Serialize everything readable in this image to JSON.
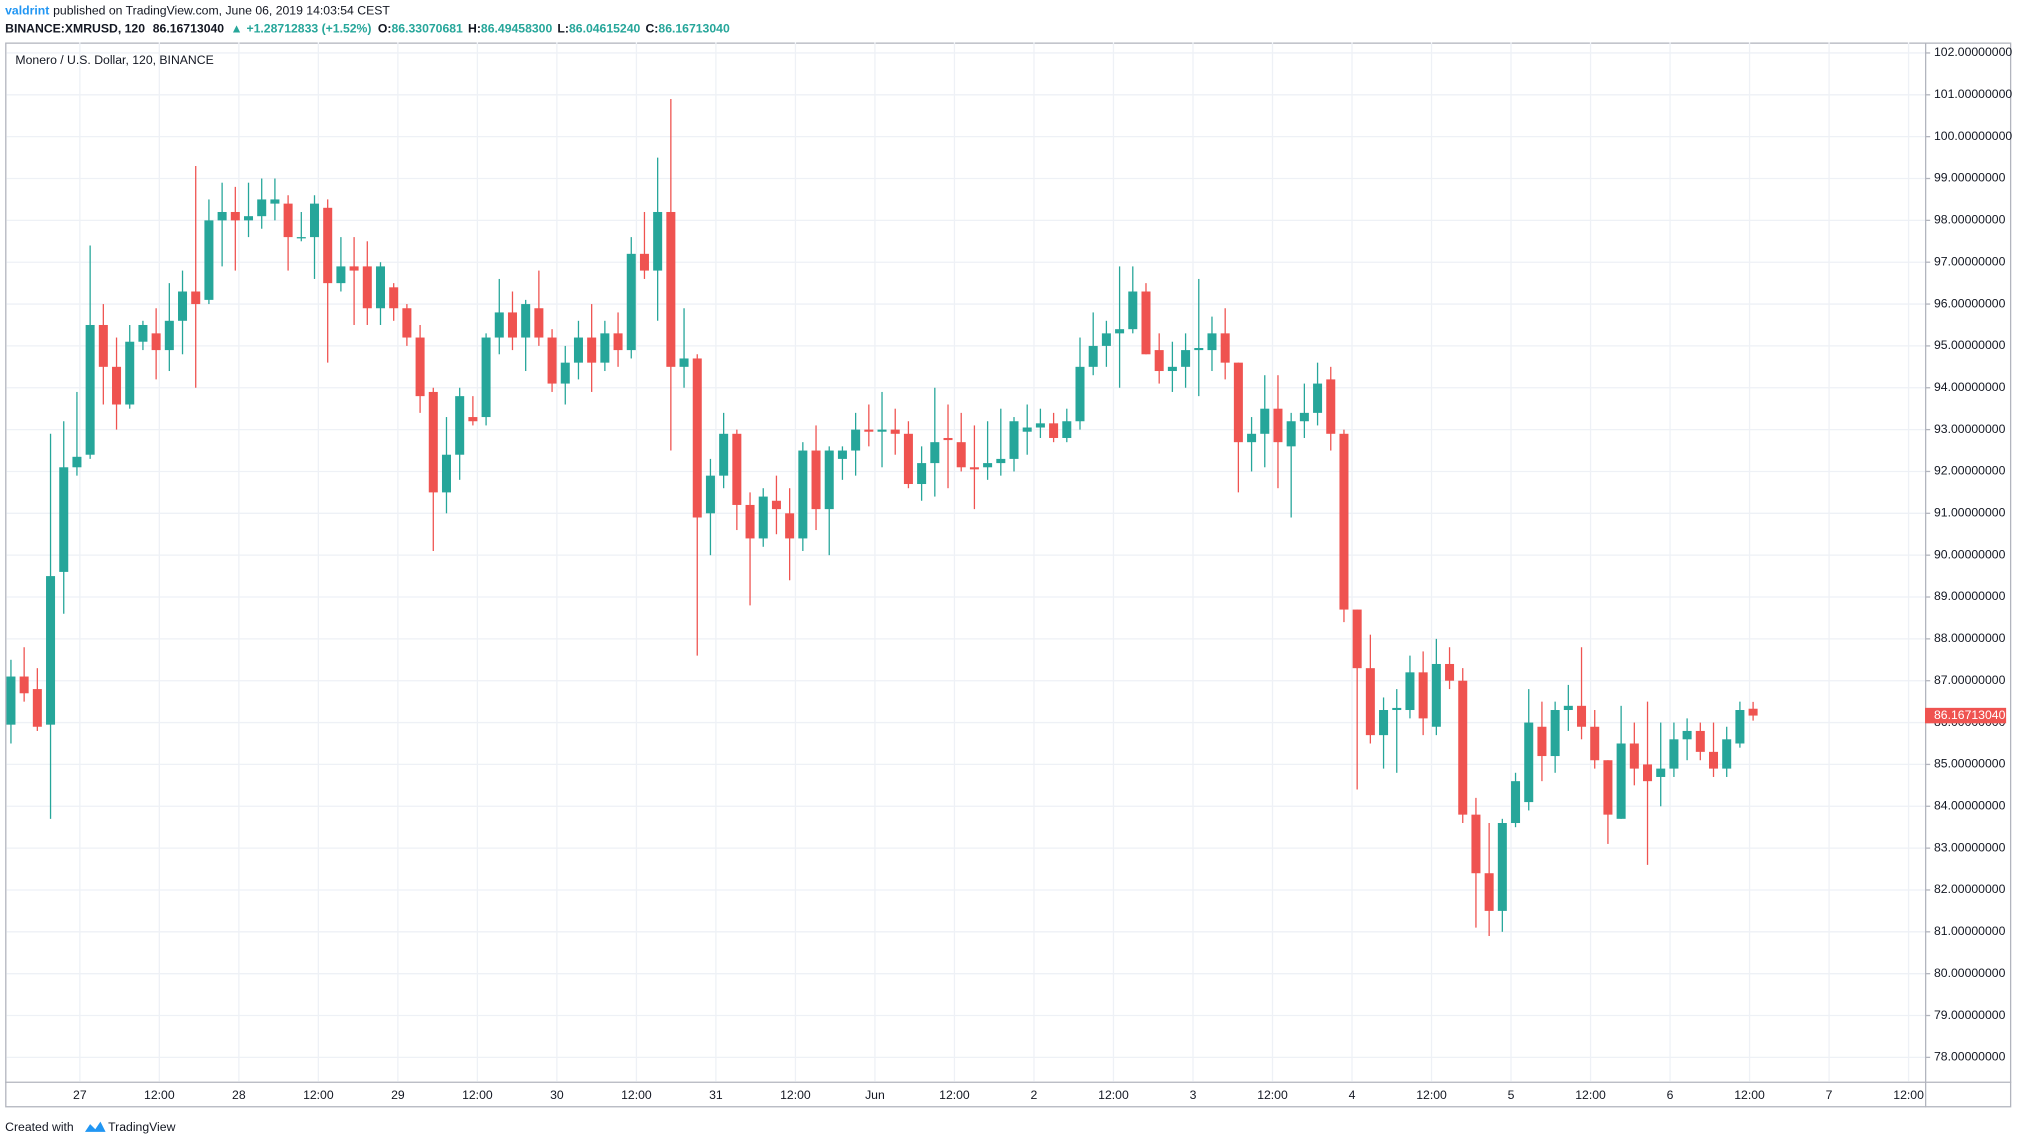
{
  "header": {
    "author": "valdrint",
    "published": "published on TradingView.com, June 06, 2019 14:03:54 CEST",
    "symbol": "BINANCE:XMRUSD, 120",
    "last": "86.16713040",
    "change": "+1.28712833 (+1.52%)",
    "o_label": "O:",
    "o": "86.33070681",
    "h_label": "H:",
    "h": "86.49458300",
    "l_label": "L:",
    "l": "86.04615240",
    "c_label": "C:",
    "c": "86.16713040"
  },
  "footer": {
    "created": "Created with",
    "brand": "TradingView"
  },
  "chart_data": {
    "type": "candlestick",
    "title": "Monero / U.S. Dollar, 120, BINANCE",
    "up_color": "#26a69a",
    "down_color": "#ef5350",
    "grid": true,
    "ylim": [
      77.42,
      102.25
    ],
    "yticks": [
      {
        "value": 78,
        "label": "78.00000000"
      },
      {
        "value": 79,
        "label": "79.00000000"
      },
      {
        "value": 80,
        "label": "80.00000000"
      },
      {
        "value": 81,
        "label": "81.00000000"
      },
      {
        "value": 82,
        "label": "82.00000000"
      },
      {
        "value": 83,
        "label": "83.00000000"
      },
      {
        "value": 84,
        "label": "84.00000000"
      },
      {
        "value": 85,
        "label": "85.00000000"
      },
      {
        "value": 86,
        "label": "86.00000000"
      },
      {
        "value": 87,
        "label": "87.00000000"
      },
      {
        "value": 88,
        "label": "88.00000000"
      },
      {
        "value": 89,
        "label": "89.00000000"
      },
      {
        "value": 90,
        "label": "90.00000000"
      },
      {
        "value": 91,
        "label": "91.00000000"
      },
      {
        "value": 92,
        "label": "92.00000000"
      },
      {
        "value": 93,
        "label": "93.00000000"
      },
      {
        "value": 94,
        "label": "94.00000000"
      },
      {
        "value": 95,
        "label": "95.00000000"
      },
      {
        "value": 96,
        "label": "96.00000000"
      },
      {
        "value": 97,
        "label": "97.00000000"
      },
      {
        "value": 98,
        "label": "98.00000000"
      },
      {
        "value": 99,
        "label": "99.00000000"
      },
      {
        "value": 100,
        "label": "100.00000000"
      },
      {
        "value": 101,
        "label": "101.00000000"
      },
      {
        "value": 102,
        "label": "102.00000000"
      }
    ],
    "xtick_labels": [
      "27",
      "12:00",
      "28",
      "12:00",
      "29",
      "12:00",
      "30",
      "12:00",
      "31",
      "12:00",
      "Jun",
      "12:00",
      "2",
      "12:00",
      "3",
      "12:00",
      "4",
      "12:00",
      "5",
      "12:00",
      "6",
      "12:00",
      "7",
      "12:00"
    ],
    "last_price": 86.1671304,
    "last_price_label": "86.16713040",
    "open": [
      85.95,
      87.1,
      86.8,
      85.95,
      89.6,
      92.1,
      92.4,
      95.5,
      94.5,
      93.6,
      95.1,
      95.3,
      94.9,
      95.6,
      96.3,
      96.1,
      98.0,
      98.2,
      98.0,
      98.1,
      98.4,
      98.4,
      97.6,
      97.6,
      98.3,
      96.5,
      96.9,
      96.9,
      95.9,
      96.4,
      95.9,
      95.2,
      93.9,
      91.5,
      92.4,
      93.3,
      93.3,
      95.2,
      95.8,
      95.2,
      95.9,
      95.2,
      94.1,
      94.6,
      95.2,
      94.6,
      95.3,
      94.9,
      97.2,
      96.8,
      98.2,
      94.5,
      94.7,
      91.0,
      91.9,
      92.9,
      91.2,
      90.4,
      91.3,
      91.0,
      90.4,
      92.5,
      91.1,
      92.3,
      92.5,
      93.0,
      92.95,
      93.0,
      92.9,
      91.7,
      92.2,
      92.8,
      92.7,
      92.1,
      92.1,
      92.2,
      92.3,
      92.95,
      93.05,
      93.15,
      92.8,
      93.2,
      94.5,
      95.0,
      95.3,
      95.4,
      96.3,
      94.9,
      94.4,
      94.5,
      94.9,
      94.9,
      95.3,
      94.6,
      92.7,
      92.9,
      93.5,
      92.6,
      93.2,
      93.4,
      94.2,
      92.9,
      88.7,
      87.3,
      85.7,
      86.3,
      86.3,
      87.2,
      85.9,
      87.4,
      87.0,
      83.8,
      82.4,
      81.5,
      83.6,
      84.1,
      85.9,
      85.2,
      86.3,
      86.4,
      85.9,
      85.1,
      83.7,
      85.5,
      85.0,
      84.7,
      84.9,
      85.6,
      85.8,
      85.3,
      84.9,
      85.5,
      86.33070681
    ],
    "high": [
      87.5,
      87.8,
      87.3,
      92.9,
      93.2,
      93.9,
      97.4,
      96.0,
      95.2,
      95.5,
      95.6,
      95.9,
      96.5,
      96.8,
      99.3,
      98.5,
      98.9,
      98.8,
      98.9,
      99.0,
      99.0,
      98.6,
      98.2,
      98.6,
      98.5,
      97.6,
      97.6,
      97.5,
      97.0,
      96.5,
      96.0,
      95.5,
      94.0,
      93.3,
      94.0,
      93.8,
      95.3,
      96.6,
      96.3,
      96.1,
      96.8,
      95.4,
      95.0,
      95.6,
      96.0,
      95.6,
      95.8,
      97.6,
      98.2,
      99.5,
      100.9,
      95.9,
      94.8,
      92.3,
      93.4,
      93.0,
      91.5,
      91.6,
      91.9,
      91.6,
      92.7,
      93.1,
      92.6,
      92.6,
      93.4,
      93.6,
      93.9,
      93.5,
      93.2,
      92.6,
      94.0,
      93.6,
      93.4,
      93.1,
      93.2,
      93.5,
      93.3,
      93.6,
      93.5,
      93.4,
      93.5,
      95.2,
      95.8,
      95.6,
      96.9,
      96.9,
      96.5,
      95.3,
      95.1,
      95.3,
      96.6,
      95.7,
      95.9,
      94.6,
      93.3,
      94.3,
      94.3,
      93.4,
      94.1,
      94.6,
      94.5,
      93.0,
      88.7,
      88.1,
      86.6,
      86.8,
      87.6,
      87.7,
      88.0,
      87.8,
      87.3,
      84.2,
      83.6,
      83.7,
      84.8,
      86.8,
      86.5,
      86.5,
      86.9,
      87.8,
      86.3,
      85.1,
      86.4,
      86.0,
      86.5,
      86.0,
      86.0,
      86.1,
      86.0,
      86.0,
      85.9,
      86.5,
      86.494583
    ],
    "low": [
      85.5,
      86.5,
      85.8,
      83.7,
      88.6,
      91.9,
      92.3,
      93.6,
      93.0,
      93.5,
      94.9,
      94.2,
      94.4,
      94.8,
      94.0,
      96.0,
      96.9,
      96.8,
      97.6,
      97.8,
      98.0,
      96.8,
      97.5,
      96.6,
      94.6,
      96.3,
      95.5,
      95.5,
      95.5,
      95.6,
      95.0,
      93.4,
      90.1,
      91.0,
      91.8,
      93.1,
      93.1,
      94.8,
      94.9,
      94.4,
      95.0,
      93.9,
      93.6,
      94.2,
      93.9,
      94.4,
      94.5,
      94.7,
      96.6,
      95.6,
      92.5,
      94.0,
      87.6,
      90.0,
      91.6,
      90.6,
      88.8,
      90.2,
      90.5,
      89.4,
      90.1,
      90.6,
      90.0,
      91.8,
      91.9,
      92.6,
      92.1,
      92.4,
      91.6,
      91.3,
      91.4,
      91.6,
      92.0,
      91.1,
      91.8,
      91.9,
      92.0,
      92.4,
      92.8,
      92.7,
      92.7,
      93.0,
      94.3,
      94.5,
      94.0,
      95.3,
      94.8,
      94.1,
      93.9,
      94.0,
      93.8,
      94.4,
      94.2,
      91.5,
      92.0,
      92.1,
      91.6,
      90.9,
      92.8,
      93.1,
      92.5,
      88.4,
      84.4,
      85.5,
      84.9,
      84.8,
      86.1,
      85.7,
      85.7,
      86.8,
      83.6,
      81.1,
      80.9,
      81.0,
      83.5,
      83.9,
      84.6,
      84.8,
      85.8,
      85.6,
      84.9,
      83.1,
      83.7,
      84.5,
      82.6,
      84.0,
      84.7,
      85.1,
      85.1,
      84.7,
      84.7,
      85.4,
      86.0461524
    ],
    "close": [
      87.1,
      86.7,
      85.9,
      89.5,
      92.1,
      92.35,
      95.5,
      94.5,
      93.6,
      95.1,
      95.5,
      94.9,
      95.6,
      96.3,
      96.0,
      98.0,
      98.2,
      98.0,
      98.1,
      98.5,
      98.5,
      97.6,
      97.6,
      98.4,
      96.5,
      96.9,
      96.8,
      95.9,
      96.9,
      95.9,
      95.2,
      93.8,
      91.5,
      92.4,
      93.8,
      93.2,
      95.2,
      95.8,
      95.2,
      96.0,
      95.2,
      94.1,
      94.6,
      95.2,
      94.6,
      95.3,
      94.9,
      97.2,
      96.8,
      98.2,
      94.5,
      94.7,
      90.9,
      91.9,
      92.9,
      91.2,
      90.4,
      91.4,
      91.1,
      90.4,
      92.5,
      91.1,
      92.5,
      92.5,
      93.0,
      92.95,
      93.0,
      92.9,
      91.7,
      92.2,
      92.7,
      92.75,
      92.1,
      92.05,
      92.2,
      92.3,
      93.2,
      93.05,
      93.15,
      92.8,
      93.2,
      94.5,
      95.0,
      95.3,
      95.4,
      96.3,
      94.8,
      94.4,
      94.5,
      94.9,
      94.95,
      95.3,
      94.6,
      92.7,
      92.9,
      93.5,
      92.7,
      93.2,
      93.4,
      94.1,
      92.9,
      88.7,
      87.3,
      85.7,
      86.3,
      86.35,
      87.2,
      86.1,
      87.4,
      87.0,
      83.8,
      82.4,
      81.5,
      83.6,
      84.6,
      86.0,
      85.2,
      86.3,
      86.4,
      85.9,
      85.1,
      83.8,
      85.5,
      84.9,
      84.6,
      84.9,
      85.6,
      85.8,
      85.3,
      84.9,
      85.6,
      86.3,
      86.1671304
    ]
  }
}
